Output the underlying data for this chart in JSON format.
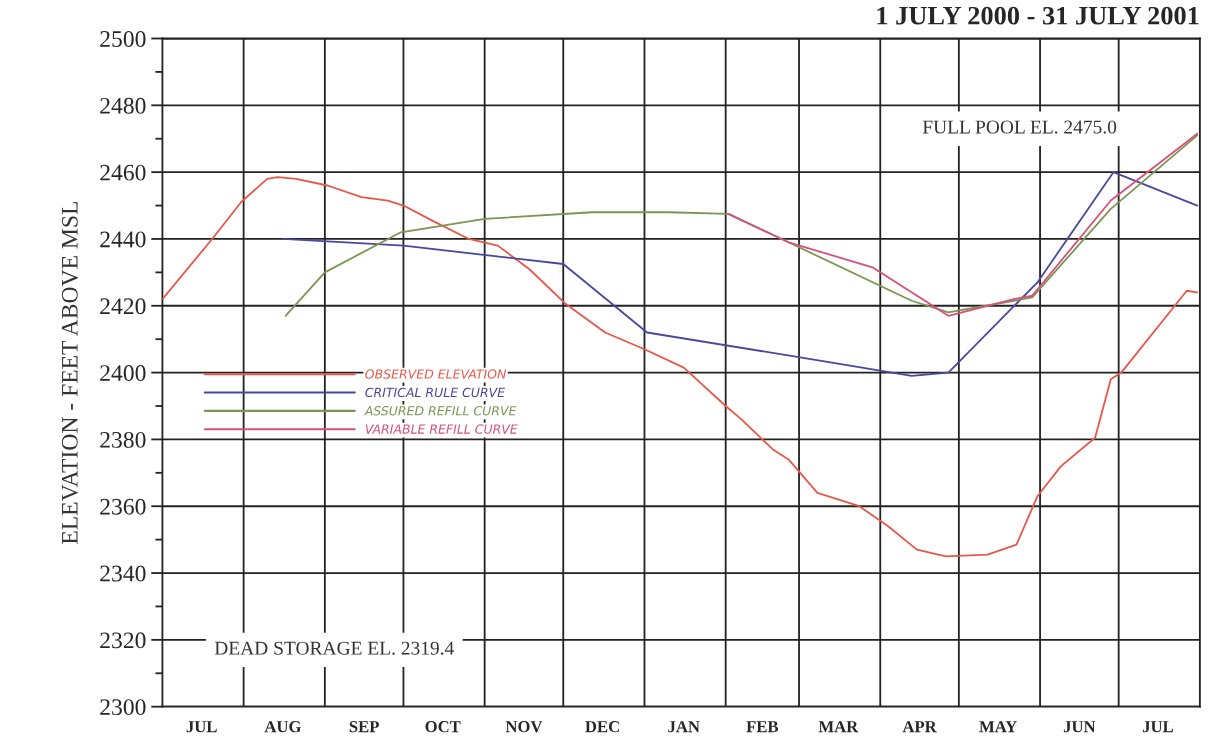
{
  "chart_data": {
    "type": "line",
    "title": "1 JULY 2000 - 31 JULY 2001",
    "ylabel": "ELEVATION - FEET ABOVE MSL",
    "xlim": [
      "2000-07-01",
      "2001-08-01"
    ],
    "xticks": [
      {
        "value": "2000-07-16",
        "label": "JUL"
      },
      {
        "value": "2000-08-16",
        "label": "AUG"
      },
      {
        "value": "2000-09-16",
        "label": "SEP"
      },
      {
        "value": "2000-10-16",
        "label": "OCT"
      },
      {
        "value": "2000-11-16",
        "label": "NOV"
      },
      {
        "value": "2000-12-16",
        "label": "DEC"
      },
      {
        "value": "2001-01-16",
        "label": "JAN"
      },
      {
        "value": "2001-02-15",
        "label": "FEB"
      },
      {
        "value": "2001-03-16",
        "label": "MAR"
      },
      {
        "value": "2001-04-16",
        "label": "APR"
      },
      {
        "value": "2001-05-16",
        "label": "MAY"
      },
      {
        "value": "2001-06-16",
        "label": "JUN"
      },
      {
        "value": "2001-07-16",
        "label": "JUL"
      },
      {
        "value": "2000-08-01",
        "label": null
      },
      {
        "value": "2000-09-01",
        "label": null
      },
      {
        "value": "2000-10-01",
        "label": null
      },
      {
        "value": "2000-11-01",
        "label": null
      },
      {
        "value": "2000-12-01",
        "label": null
      },
      {
        "value": "2001-01-01",
        "label": null
      },
      {
        "value": "2001-02-01",
        "label": null
      },
      {
        "value": "2001-03-01",
        "label": null
      },
      {
        "value": "2001-04-01",
        "label": null
      },
      {
        "value": "2001-05-01",
        "label": null
      },
      {
        "value": "2001-06-01",
        "label": null
      },
      {
        "value": "2001-07-01",
        "label": null
      }
    ],
    "ylim": [
      2300,
      2500
    ],
    "yticks": [
      2300,
      2320,
      2340,
      2360,
      2380,
      2400,
      2420,
      2440,
      2460,
      2480,
      2500,
      {
        "value": 2310,
        "label": null
      },
      {
        "value": 2330,
        "label": null
      },
      {
        "value": 2350,
        "label": null
      },
      {
        "value": 2370,
        "label": null
      },
      {
        "value": 2390,
        "label": null
      },
      {
        "value": 2410,
        "label": null
      },
      {
        "value": 2430,
        "label": null
      },
      {
        "value": 2450,
        "label": null
      },
      {
        "value": 2470,
        "label": null
      },
      {
        "value": 2490,
        "label": null
      }
    ],
    "grid": true,
    "legend": "left",
    "line_style": "solid",
    "marker": "none",
    "series": [
      {
        "name": "OBSERVED ELEVATION",
        "color": "#e8584a",
        "x": [
          "2000-07-01",
          "2000-07-20",
          "2000-07-31",
          "2000-08-10",
          "2000-08-14",
          "2000-08-21",
          "2000-09-02",
          "2000-09-15",
          "2000-09-25",
          "2000-10-01",
          "2000-10-12",
          "2000-10-26",
          "2000-11-06",
          "2000-11-18",
          "2000-12-02",
          "2000-12-17",
          "2001-01-01",
          "2001-01-16",
          "2001-02-01",
          "2001-02-07",
          "2001-02-19",
          "2001-02-25",
          "2001-03-08",
          "2001-03-24",
          "2001-04-04",
          "2001-04-15",
          "2001-04-26",
          "2001-05-12",
          "2001-05-23",
          "2001-05-31",
          "2001-06-09",
          "2001-06-22",
          "2001-06-28",
          "2001-07-02",
          "2001-07-27",
          "2001-07-31"
        ],
        "values": [
          2422,
          2440,
          2451,
          2458,
          2458.5,
          2458,
          2456,
          2452.5,
          2451.5,
          2450,
          2445.5,
          2440,
          2438,
          2431,
          2420.5,
          2412,
          2407,
          2401.5,
          2390,
          2386,
          2377,
          2374,
          2364,
          2360,
          2354,
          2347,
          2345,
          2345.5,
          2348.5,
          2363,
          2372,
          2380.5,
          2398,
          2400,
          2424.5,
          2424
        ]
      },
      {
        "name": "CRITICAL RULE CURVE",
        "color": "#4848a0",
        "x": [
          "2000-08-16",
          "2000-10-01",
          "2000-12-01",
          "2001-01-02",
          "2001-02-26",
          "2001-04-13",
          "2001-04-27",
          "2001-05-31",
          "2001-06-29",
          "2001-07-31"
        ],
        "values": [
          2440,
          2438,
          2432.5,
          2412,
          2405,
          2399,
          2400,
          2427,
          2460,
          2450
        ]
      },
      {
        "name": "ASSURED REFILL CURVE",
        "color": "#7a9650",
        "x": [
          "2000-08-17",
          "2000-09-01",
          "2000-09-30",
          "2000-11-01",
          "2000-12-12",
          "2001-01-10",
          "2001-02-02",
          "2001-02-25",
          "2001-04-13",
          "2001-04-27",
          "2001-05-22",
          "2001-05-29",
          "2001-06-28",
          "2001-07-31"
        ],
        "values": [
          2417,
          2430,
          2442,
          2446,
          2448,
          2448,
          2447.5,
          2439,
          2421.5,
          2418,
          2421.5,
          2422.5,
          2449,
          2471
        ]
      },
      {
        "name": "VARIABLE REFILL CURVE",
        "color": "#d8507c",
        "x": [
          "2001-02-02",
          "2001-02-25",
          "2001-03-29",
          "2001-04-27",
          "2001-05-22",
          "2001-05-29",
          "2001-06-28",
          "2001-07-31"
        ],
        "values": [
          2447.5,
          2439,
          2431.5,
          2417,
          2422,
          2423,
          2451.5,
          2471.5
        ]
      }
    ],
    "annotations": [
      "FULL POOL EL. 2475.0",
      "DEAD STORAGE EL. 2319.4"
    ]
  }
}
